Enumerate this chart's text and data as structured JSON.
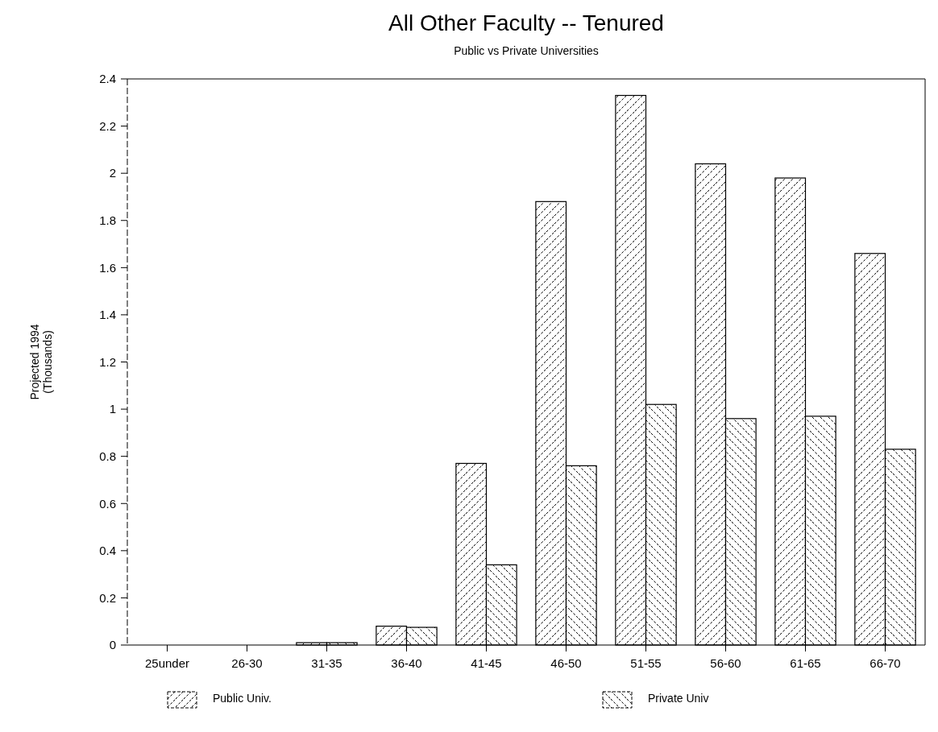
{
  "chart_data": {
    "type": "bar",
    "title": "All Other Faculty -- Tenured",
    "subtitle": "Public vs Private Universities",
    "ylabel": "Projected 1994\n(Thousands)",
    "categories": [
      "25under",
      "26-30",
      "31-35",
      "36-40",
      "41-45",
      "46-50",
      "51-55",
      "56-60",
      "61-65",
      "66-70"
    ],
    "series": [
      {
        "name": "Public Univ.",
        "color": "#000000",
        "values": [
          0,
          0,
          0.01,
          0.08,
          0.77,
          1.88,
          2.33,
          2.04,
          1.98,
          1.66
        ]
      },
      {
        "name": "Private Univ",
        "color": "#000000",
        "values": [
          0,
          0,
          0.01,
          0.075,
          0.34,
          0.76,
          1.02,
          0.96,
          0.97,
          0.83
        ]
      }
    ],
    "ylim": [
      0,
      2.4
    ],
    "yticks": [
      0,
      0.2,
      0.4,
      0.6,
      0.8,
      1,
      1.2,
      1.4,
      1.6,
      1.8,
      2,
      2.2,
      2.4
    ],
    "grid": false,
    "legend": "bottom"
  }
}
